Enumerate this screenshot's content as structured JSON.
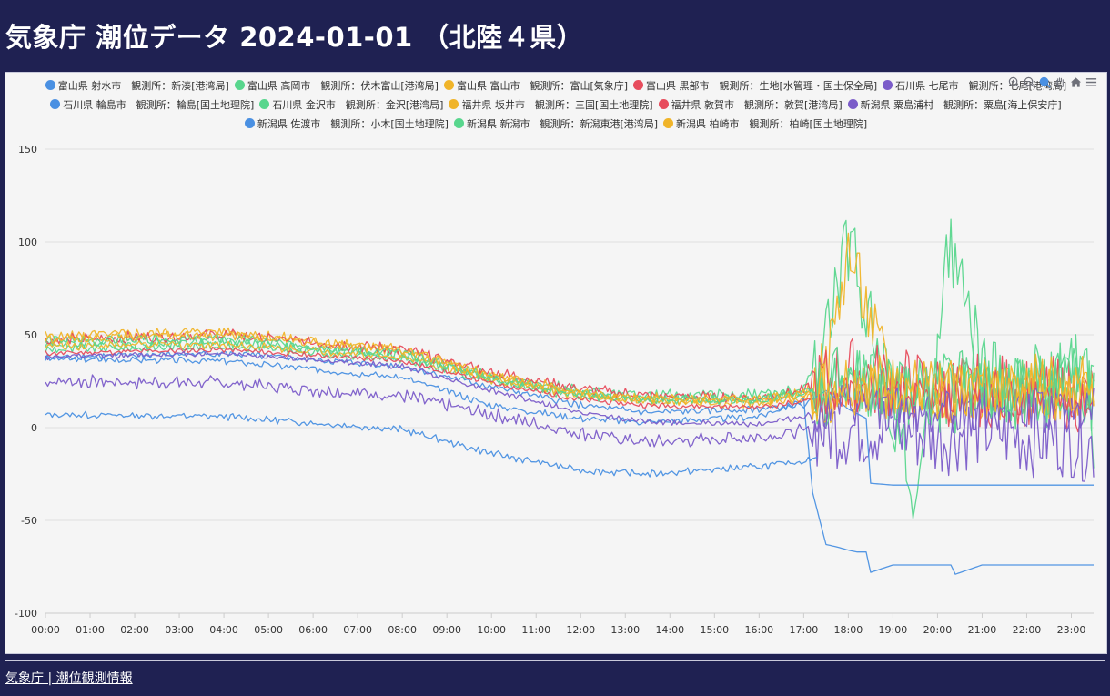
{
  "page": {
    "title": "気象庁 潮位データ 2024-01-01 （北陸４県）",
    "footer_link": "気象庁 | 潮位観測情報"
  },
  "toolbar_icons": [
    "zoom-in-icon",
    "zoom-out-icon",
    "zoom-select-icon",
    "pan-icon",
    "home-icon",
    "menu-icon"
  ],
  "chart_data": {
    "type": "line",
    "title": "",
    "xlabel": "",
    "ylabel": "",
    "ylim": [
      -100,
      150
    ],
    "y_ticks": [
      "150",
      "100",
      "50",
      "0",
      "-50",
      "-100"
    ],
    "x_ticks": [
      "00:00",
      "01:00",
      "02:00",
      "03:00",
      "04:00",
      "05:00",
      "06:00",
      "07:00",
      "08:00",
      "09:00",
      "10:00",
      "11:00",
      "12:00",
      "13:00",
      "14:00",
      "15:00",
      "16:00",
      "17:00",
      "18:00",
      "19:00",
      "20:00",
      "21:00",
      "22:00",
      "23:00"
    ],
    "x_label_offset_hours": 0.5,
    "x_unit": "hours",
    "xlim": [
      0,
      23.5
    ],
    "grid": true,
    "legend_placement": "top",
    "legend_rows": [
      [
        0,
        1,
        2,
        3,
        4
      ],
      [
        5,
        6,
        7,
        8,
        9
      ],
      [
        10,
        11,
        12
      ]
    ],
    "series": [
      {
        "name": "富山県 射水市　観測所：新湊[港湾局]",
        "color": "#4a90e2",
        "x": [
          0,
          4,
          8,
          10,
          12,
          13.5,
          16,
          17,
          17.2,
          17.5,
          17.7,
          18.0,
          18.2,
          18.4,
          18.5,
          19,
          20,
          20.3,
          20.4,
          21,
          22,
          23,
          23.5
        ],
        "y": [
          37,
          36,
          27,
          12,
          5,
          3,
          6,
          15,
          -35,
          -63,
          -64,
          -66,
          -67,
          -67,
          -78,
          -74,
          -74,
          -74,
          -79,
          -74,
          -74,
          -74,
          -74
        ],
        "noise": 1.5,
        "noise_after": 0
      },
      {
        "name": "富山県 高岡市　観測所：伏木富山[港湾局]",
        "color": "#58d68d",
        "x": [
          0,
          4,
          8,
          10,
          12,
          13.5,
          16,
          17,
          17.5,
          18,
          19,
          19.5,
          20,
          20.2,
          21,
          22,
          23,
          23.5
        ],
        "y": [
          45,
          46,
          39,
          27,
          20,
          17,
          18,
          20,
          48,
          100,
          12,
          -45,
          40,
          105,
          30,
          20,
          38,
          0
        ],
        "noise": 2.5,
        "noise_after": 22
      },
      {
        "name": "富山県 富山市　観測所：富山[気象庁]",
        "color": "#f0b429",
        "x": [
          0,
          4,
          8,
          10,
          12,
          13.5,
          16,
          17,
          17.5,
          18,
          19,
          20,
          21,
          22,
          23,
          23.5
        ],
        "y": [
          49,
          52,
          41,
          28,
          17,
          15,
          15,
          18,
          30,
          95,
          20,
          20,
          20,
          20,
          22,
          26
        ],
        "noise": 2.5,
        "noise_after": 18
      },
      {
        "name": "富山県 黒部市　観測所：生地[水管理・国土保全局]",
        "color": "#e74c5c",
        "x": [
          0,
          4,
          8,
          10,
          12,
          13.5,
          16,
          17,
          18,
          19,
          20,
          21,
          22,
          23,
          23.5
        ],
        "y": [
          47,
          50,
          42,
          30,
          21,
          17,
          16,
          20,
          30,
          25,
          20,
          20,
          20,
          18,
          15
        ],
        "noise": 2.5,
        "noise_after": 20
      },
      {
        "name": "石川県 七尾市　観測所：七尾[港湾局]",
        "color": "#7b5cc9",
        "x": [
          0,
          4,
          8,
          10,
          12,
          13.5,
          16,
          17,
          18,
          19,
          20,
          21,
          22,
          23,
          23.5
        ],
        "y": [
          25,
          24,
          17,
          7,
          -3,
          -8,
          -5,
          -2,
          0,
          0,
          -5,
          0,
          -5,
          -5,
          -10
        ],
        "noise": 3,
        "noise_after": 22
      },
      {
        "name": "石川県 輪島市　観測所：輪島[国土地理院]",
        "color": "#4a90e2",
        "x": [
          0,
          4,
          8,
          10,
          12,
          13.5,
          16,
          17,
          17.5,
          18,
          18.4,
          18.5,
          19,
          20,
          20.5,
          20.6,
          21,
          22,
          23,
          23.5
        ],
        "y": [
          38,
          40,
          33,
          22,
          12,
          8,
          10,
          12,
          20,
          10,
          5,
          -30,
          -31,
          -31,
          -31,
          -31,
          -31,
          -31,
          -31,
          -31
        ],
        "noise": 1.5,
        "noise_after": 0
      },
      {
        "name": "石川県 金沢市　観測所：金沢[港湾局]",
        "color": "#58d68d",
        "x": [
          0,
          4,
          8,
          10,
          12,
          13.5,
          16,
          17,
          18,
          19,
          20,
          21,
          22,
          23,
          23.5
        ],
        "y": [
          42,
          44,
          37,
          25,
          17,
          15,
          15,
          18,
          22,
          20,
          15,
          20,
          18,
          20,
          15
        ],
        "noise": 2,
        "noise_after": 20
      },
      {
        "name": "福井県 坂井市　観測所：三国[国土地理院]",
        "color": "#f0b429",
        "x": [
          0,
          4,
          8,
          10,
          12,
          13.5,
          16,
          17,
          18,
          19,
          20,
          21,
          22,
          23,
          23.5
        ],
        "y": [
          44,
          45,
          38,
          26,
          17,
          14,
          13,
          16,
          20,
          20,
          18,
          18,
          16,
          18,
          20
        ],
        "noise": 2,
        "noise_after": 16
      },
      {
        "name": "福井県 敦賀市　観測所：敦賀[港湾局]",
        "color": "#e74c5c",
        "x": [
          0,
          4,
          8,
          10,
          12,
          13.5,
          16,
          17,
          18,
          19,
          20,
          21,
          22,
          23,
          23.5
        ],
        "y": [
          40,
          42,
          36,
          24,
          15,
          12,
          11,
          14,
          18,
          16,
          15,
          15,
          15,
          15,
          12
        ],
        "noise": 1.2,
        "noise_after": 10
      },
      {
        "name": "新潟県 粟島浦村　観測所：粟島[海上保安庁]",
        "color": "#7b5cc9",
        "x": [
          0,
          4,
          8,
          10,
          12,
          13.5,
          16,
          17,
          18,
          19,
          20,
          21,
          22,
          23,
          23.5
        ],
        "y": [
          38,
          40,
          33,
          20,
          8,
          3,
          2,
          6,
          12,
          10,
          8,
          10,
          10,
          8,
          10
        ],
        "noise": 1.2,
        "noise_after": 12
      },
      {
        "name": "新潟県 佐渡市　観測所：小木[国土地理院]",
        "color": "#4a90e2",
        "x": [
          0,
          4,
          8,
          10,
          12,
          13.5,
          16,
          17,
          17.3
        ],
        "y": [
          7,
          6,
          -1,
          -14,
          -23,
          -25,
          -21,
          -18,
          -16
        ],
        "noise": 1.5,
        "noise_after": 0
      },
      {
        "name": "新潟県 新潟市　観測所：新潟東港[港湾局]",
        "color": "#58d68d",
        "x": [
          0,
          4,
          8,
          10,
          12,
          13.5,
          16,
          17,
          18,
          19,
          20,
          21,
          22,
          23,
          23.5
        ],
        "y": [
          47,
          48,
          40,
          27,
          18,
          15,
          15,
          19,
          28,
          20,
          25,
          22,
          20,
          30,
          25
        ],
        "noise": 2.2,
        "noise_after": 18
      },
      {
        "name": "新潟県 柏崎市　観測所：柏崎[国土地理院]",
        "color": "#f0b429",
        "x": [
          0,
          4,
          8,
          10,
          12,
          13.5,
          16,
          17,
          18,
          19,
          20,
          21,
          22,
          23,
          23.5
        ],
        "y": [
          48,
          50,
          42,
          28,
          19,
          16,
          15,
          18,
          25,
          22,
          20,
          22,
          25,
          22,
          25
        ],
        "noise": 2.2,
        "noise_after": 16
      }
    ]
  }
}
